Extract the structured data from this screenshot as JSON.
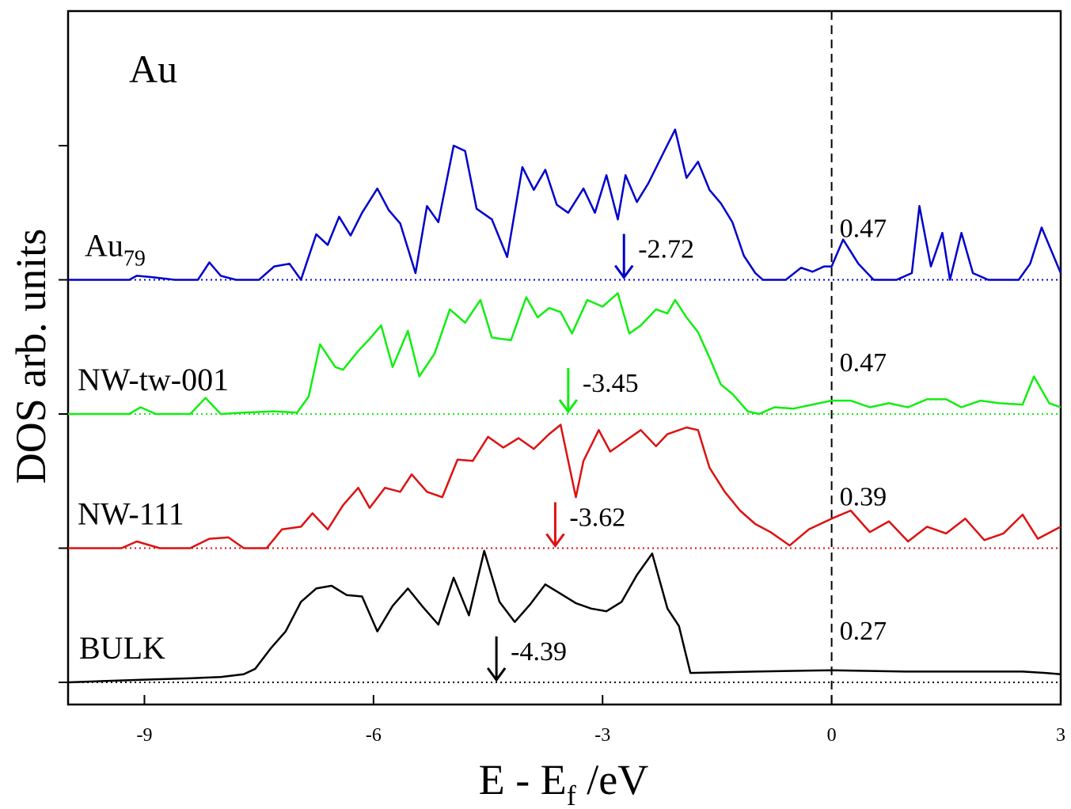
{
  "chart_data": {
    "type": "line",
    "title": "Au",
    "xlabel": "E - E",
    "xlabel_sub": "f",
    "xlabel_unit": " /eV",
    "ylabel": "DOS arb. units",
    "xlim": [
      -10,
      3
    ],
    "xticks": [
      -9,
      -6,
      -3,
      0,
      3
    ],
    "xtick_labels": [
      "-9",
      "-6",
      "-3",
      "0",
      "3"
    ],
    "fermi_level": 0,
    "grid": false,
    "stacked_offsets": true,
    "series": [
      {
        "name": "Au",
        "name_sub": "79",
        "color": "#0000cc",
        "offset": 3,
        "d_band_center": -2.72,
        "d_band_center_label": "-2.72",
        "fermi_value_label": "0.47",
        "points": [
          [
            -10,
            0
          ],
          [
            -9.2,
            0
          ],
          [
            -9.1,
            0.03
          ],
          [
            -8.9,
            0.02
          ],
          [
            -8.6,
            0
          ],
          [
            -8.3,
            0
          ],
          [
            -8.15,
            0.13
          ],
          [
            -8.0,
            0.03
          ],
          [
            -7.8,
            0
          ],
          [
            -7.5,
            0
          ],
          [
            -7.3,
            0.1
          ],
          [
            -7.1,
            0.12
          ],
          [
            -6.95,
            0
          ],
          [
            -6.75,
            0.34
          ],
          [
            -6.6,
            0.26
          ],
          [
            -6.45,
            0.47
          ],
          [
            -6.3,
            0.33
          ],
          [
            -6.15,
            0.5
          ],
          [
            -5.95,
            0.68
          ],
          [
            -5.8,
            0.52
          ],
          [
            -5.65,
            0.42
          ],
          [
            -5.45,
            0.05
          ],
          [
            -5.3,
            0.55
          ],
          [
            -5.15,
            0.43
          ],
          [
            -4.95,
            1.0
          ],
          [
            -4.8,
            0.96
          ],
          [
            -4.65,
            0.53
          ],
          [
            -4.45,
            0.45
          ],
          [
            -4.25,
            0.17
          ],
          [
            -4.05,
            0.84
          ],
          [
            -3.9,
            0.67
          ],
          [
            -3.75,
            0.82
          ],
          [
            -3.6,
            0.56
          ],
          [
            -3.45,
            0.5
          ],
          [
            -3.25,
            0.68
          ],
          [
            -3.1,
            0.5
          ],
          [
            -2.95,
            0.78
          ],
          [
            -2.8,
            0.45
          ],
          [
            -2.7,
            0.78
          ],
          [
            -2.55,
            0.58
          ],
          [
            -2.4,
            0.72
          ],
          [
            -2.2,
            0.95
          ],
          [
            -2.05,
            1.12
          ],
          [
            -1.9,
            0.76
          ],
          [
            -1.75,
            0.88
          ],
          [
            -1.6,
            0.67
          ],
          [
            -1.45,
            0.57
          ],
          [
            -1.3,
            0.43
          ],
          [
            -1.15,
            0.18
          ],
          [
            -1.0,
            0.05
          ],
          [
            -0.9,
            0
          ],
          [
            -0.6,
            0
          ],
          [
            -0.4,
            0.09
          ],
          [
            -0.25,
            0.06
          ],
          [
            -0.1,
            0.1
          ],
          [
            0,
            0.1
          ],
          [
            0.15,
            0.3
          ],
          [
            0.35,
            0.12
          ],
          [
            0.55,
            0
          ],
          [
            0.85,
            0
          ],
          [
            1.05,
            0.05
          ],
          [
            1.15,
            0.55
          ],
          [
            1.3,
            0.1
          ],
          [
            1.45,
            0.35
          ],
          [
            1.55,
            0
          ],
          [
            1.7,
            0.35
          ],
          [
            1.85,
            0.05
          ],
          [
            2.05,
            0
          ],
          [
            2.45,
            0
          ],
          [
            2.6,
            0.12
          ],
          [
            2.75,
            0.39
          ],
          [
            3.0,
            0.05
          ]
        ]
      },
      {
        "name": "NW-tw-001",
        "color": "#11ee11",
        "offset": 2,
        "d_band_center": -3.45,
        "d_band_center_label": "-3.45",
        "fermi_value_label": "0.47",
        "points": [
          [
            -10,
            0
          ],
          [
            -9.2,
            0
          ],
          [
            -9.05,
            0.05
          ],
          [
            -8.85,
            0
          ],
          [
            -8.4,
            0
          ],
          [
            -8.2,
            0.12
          ],
          [
            -8.0,
            0
          ],
          [
            -7.7,
            0.01
          ],
          [
            -7.3,
            0.02
          ],
          [
            -7.0,
            0.01
          ],
          [
            -6.85,
            0.13
          ],
          [
            -6.7,
            0.52
          ],
          [
            -6.5,
            0.35
          ],
          [
            -6.4,
            0.33
          ],
          [
            -6.2,
            0.47
          ],
          [
            -6.05,
            0.56
          ],
          [
            -5.9,
            0.66
          ],
          [
            -5.75,
            0.35
          ],
          [
            -5.55,
            0.62
          ],
          [
            -5.4,
            0.28
          ],
          [
            -5.2,
            0.45
          ],
          [
            -5.0,
            0.78
          ],
          [
            -4.8,
            0.68
          ],
          [
            -4.6,
            0.85
          ],
          [
            -4.45,
            0.57
          ],
          [
            -4.2,
            0.55
          ],
          [
            -4.0,
            0.87
          ],
          [
            -3.85,
            0.72
          ],
          [
            -3.7,
            0.79
          ],
          [
            -3.55,
            0.76
          ],
          [
            -3.4,
            0.6
          ],
          [
            -3.2,
            0.85
          ],
          [
            -3.0,
            0.8
          ],
          [
            -2.8,
            0.9
          ],
          [
            -2.65,
            0.6
          ],
          [
            -2.5,
            0.66
          ],
          [
            -2.3,
            0.78
          ],
          [
            -2.15,
            0.75
          ],
          [
            -2.05,
            0.85
          ],
          [
            -1.9,
            0.72
          ],
          [
            -1.75,
            0.61
          ],
          [
            -1.6,
            0.42
          ],
          [
            -1.45,
            0.22
          ],
          [
            -1.3,
            0.15
          ],
          [
            -1.1,
            0.02
          ],
          [
            -0.95,
            0
          ],
          [
            -0.75,
            0.05
          ],
          [
            -0.5,
            0.04
          ],
          [
            -0.25,
            0.07
          ],
          [
            0,
            0.1
          ],
          [
            0.25,
            0.1
          ],
          [
            0.5,
            0.05
          ],
          [
            0.75,
            0.08
          ],
          [
            1.0,
            0.05
          ],
          [
            1.25,
            0.11
          ],
          [
            1.5,
            0.11
          ],
          [
            1.7,
            0.05
          ],
          [
            1.95,
            0.1
          ],
          [
            2.2,
            0.08
          ],
          [
            2.5,
            0.07
          ],
          [
            2.65,
            0.28
          ],
          [
            2.85,
            0.08
          ],
          [
            3.0,
            0.05
          ]
        ]
      },
      {
        "name": "NW-111",
        "color": "#dd1111",
        "offset": 1,
        "d_band_center": -3.62,
        "d_band_center_label": "-3.62",
        "fermi_value_label": "0.39",
        "points": [
          [
            -10,
            0
          ],
          [
            -9.3,
            0
          ],
          [
            -9.1,
            0.05
          ],
          [
            -8.8,
            0
          ],
          [
            -8.4,
            0
          ],
          [
            -8.15,
            0.07
          ],
          [
            -7.9,
            0.08
          ],
          [
            -7.7,
            0
          ],
          [
            -7.4,
            0
          ],
          [
            -7.2,
            0.14
          ],
          [
            -6.95,
            0.16
          ],
          [
            -6.8,
            0.26
          ],
          [
            -6.6,
            0.14
          ],
          [
            -6.4,
            0.32
          ],
          [
            -6.2,
            0.45
          ],
          [
            -6.05,
            0.3
          ],
          [
            -5.85,
            0.45
          ],
          [
            -5.65,
            0.42
          ],
          [
            -5.5,
            0.55
          ],
          [
            -5.3,
            0.42
          ],
          [
            -5.1,
            0.38
          ],
          [
            -4.9,
            0.66
          ],
          [
            -4.7,
            0.65
          ],
          [
            -4.5,
            0.83
          ],
          [
            -4.3,
            0.75
          ],
          [
            -4.1,
            0.82
          ],
          [
            -3.9,
            0.74
          ],
          [
            -3.7,
            0.85
          ],
          [
            -3.55,
            0.92
          ],
          [
            -3.35,
            0.38
          ],
          [
            -3.25,
            0.65
          ],
          [
            -3.05,
            0.88
          ],
          [
            -2.9,
            0.72
          ],
          [
            -2.7,
            0.8
          ],
          [
            -2.5,
            0.88
          ],
          [
            -2.3,
            0.76
          ],
          [
            -2.15,
            0.85
          ],
          [
            -1.9,
            0.9
          ],
          [
            -1.75,
            0.88
          ],
          [
            -1.6,
            0.6
          ],
          [
            -1.4,
            0.42
          ],
          [
            -1.2,
            0.28
          ],
          [
            -1.0,
            0.18
          ],
          [
            -0.8,
            0.12
          ],
          [
            -0.55,
            0.02
          ],
          [
            -0.3,
            0.14
          ],
          [
            0,
            0.22
          ],
          [
            0.25,
            0.28
          ],
          [
            0.5,
            0.12
          ],
          [
            0.75,
            0.2
          ],
          [
            1.0,
            0.05
          ],
          [
            1.25,
            0.16
          ],
          [
            1.5,
            0.11
          ],
          [
            1.75,
            0.22
          ],
          [
            2.0,
            0.06
          ],
          [
            2.25,
            0.11
          ],
          [
            2.5,
            0.25
          ],
          [
            2.7,
            0.07
          ],
          [
            3.0,
            0.16
          ]
        ]
      },
      {
        "name": "BULK",
        "color": "#000000",
        "offset": 0,
        "d_band_center": -4.39,
        "d_band_center_label": "-4.39",
        "fermi_value_label": "0.27",
        "points": [
          [
            -10,
            0
          ],
          [
            -9.0,
            0.02
          ],
          [
            -8.4,
            0.03
          ],
          [
            -8.0,
            0.04
          ],
          [
            -7.7,
            0.06
          ],
          [
            -7.55,
            0.1
          ],
          [
            -7.35,
            0.25
          ],
          [
            -7.15,
            0.38
          ],
          [
            -6.95,
            0.6
          ],
          [
            -6.75,
            0.7
          ],
          [
            -6.55,
            0.72
          ],
          [
            -6.35,
            0.65
          ],
          [
            -6.15,
            0.64
          ],
          [
            -5.95,
            0.38
          ],
          [
            -5.75,
            0.57
          ],
          [
            -5.55,
            0.7
          ],
          [
            -5.35,
            0.56
          ],
          [
            -5.15,
            0.43
          ],
          [
            -4.95,
            0.78
          ],
          [
            -4.75,
            0.5
          ],
          [
            -4.55,
            0.98
          ],
          [
            -4.35,
            0.6
          ],
          [
            -4.15,
            0.45
          ],
          [
            -3.95,
            0.58
          ],
          [
            -3.75,
            0.73
          ],
          [
            -3.55,
            0.66
          ],
          [
            -3.35,
            0.59
          ],
          [
            -3.15,
            0.55
          ],
          [
            -2.95,
            0.53
          ],
          [
            -2.75,
            0.6
          ],
          [
            -2.55,
            0.8
          ],
          [
            -2.35,
            0.96
          ],
          [
            -2.15,
            0.55
          ],
          [
            -2.0,
            0.42
          ],
          [
            -1.85,
            0.07
          ],
          [
            -1.0,
            0.08
          ],
          [
            0,
            0.09
          ],
          [
            1.0,
            0.08
          ],
          [
            2.0,
            0.08
          ],
          [
            2.5,
            0.08
          ],
          [
            2.8,
            0.07
          ],
          [
            3.0,
            0.06
          ]
        ]
      }
    ]
  }
}
